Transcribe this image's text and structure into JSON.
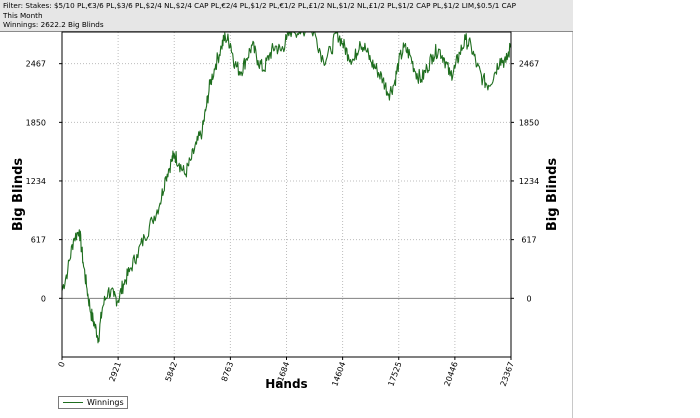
{
  "info": {
    "filter_line": "Filter: Stakes: $5/10 PL,€3/6 PL,$3/6 PL,$2/4 NL,$2/4 CAP PL,€2/4 PL,$1/2 PL,€1/2 PL,£1/2 NL,$1/2 NL,£1/2 PL,$1/2 CAP PL,$1/2 LIM,$0.5/1 CAP",
    "period_line": "This Month",
    "winnings_line": "Winnings: 2622.2 Big Blinds"
  },
  "colors": {
    "series": "#1f6e1f",
    "grid": "#bdbdbd",
    "zero_line": "#808080",
    "axis": "#000000"
  },
  "chart_data": {
    "type": "line",
    "xlabel": "Hands",
    "ylabel": "Big Blinds",
    "ylabel_right": "Big Blinds",
    "xlim": [
      0,
      23367
    ],
    "ylim": [
      -617,
      2800
    ],
    "x_ticks": [
      0,
      2921,
      5842,
      8763,
      11684,
      14604,
      17525,
      20446,
      23367
    ],
    "y_ticks": [
      0,
      617,
      1234,
      1850,
      2467
    ],
    "grid": true,
    "legend_position": "bottom-left",
    "series": [
      {
        "name": "Winnings",
        "x": [
          0,
          300,
          600,
          900,
          1100,
          1300,
          1500,
          1700,
          1900,
          2100,
          2400,
          2700,
          2921,
          3200,
          3500,
          3900,
          4300,
          4700,
          5100,
          5400,
          5700,
          5842,
          6100,
          6400,
          6700,
          7000,
          7300,
          7500,
          7700,
          8000,
          8300,
          8500,
          8763,
          9000,
          9300,
          9600,
          9900,
          10200,
          10500,
          10800,
          11100,
          11400,
          11684,
          12000,
          12400,
          12800,
          13200,
          13600,
          14000,
          14300,
          14604,
          14900,
          15200,
          15500,
          15800,
          16100,
          16400,
          16700,
          17000,
          17300,
          17525,
          17800,
          18100,
          18400,
          18700,
          19000,
          19300,
          19600,
          19900,
          20200,
          20446,
          20700,
          21000,
          21300,
          21600,
          21900,
          22200,
          22500,
          22800,
          23100,
          23367
        ],
        "values": [
          80,
          300,
          620,
          720,
          380,
          100,
          -150,
          -280,
          -420,
          -100,
          80,
          20,
          -20,
          150,
          280,
          460,
          640,
          820,
          1000,
          1280,
          1440,
          1520,
          1420,
          1300,
          1450,
          1620,
          1760,
          2000,
          2250,
          2460,
          2650,
          2750,
          2680,
          2460,
          2380,
          2520,
          2660,
          2500,
          2400,
          2560,
          2650,
          2600,
          2720,
          2850,
          2780,
          2880,
          2760,
          2500,
          2600,
          2800,
          2680,
          2560,
          2500,
          2700,
          2620,
          2480,
          2400,
          2300,
          2150,
          2260,
          2480,
          2640,
          2560,
          2380,
          2300,
          2420,
          2560,
          2620,
          2520,
          2340,
          2420,
          2580,
          2720,
          2640,
          2440,
          2300,
          2240,
          2360,
          2520,
          2480,
          2660
        ]
      }
    ]
  }
}
